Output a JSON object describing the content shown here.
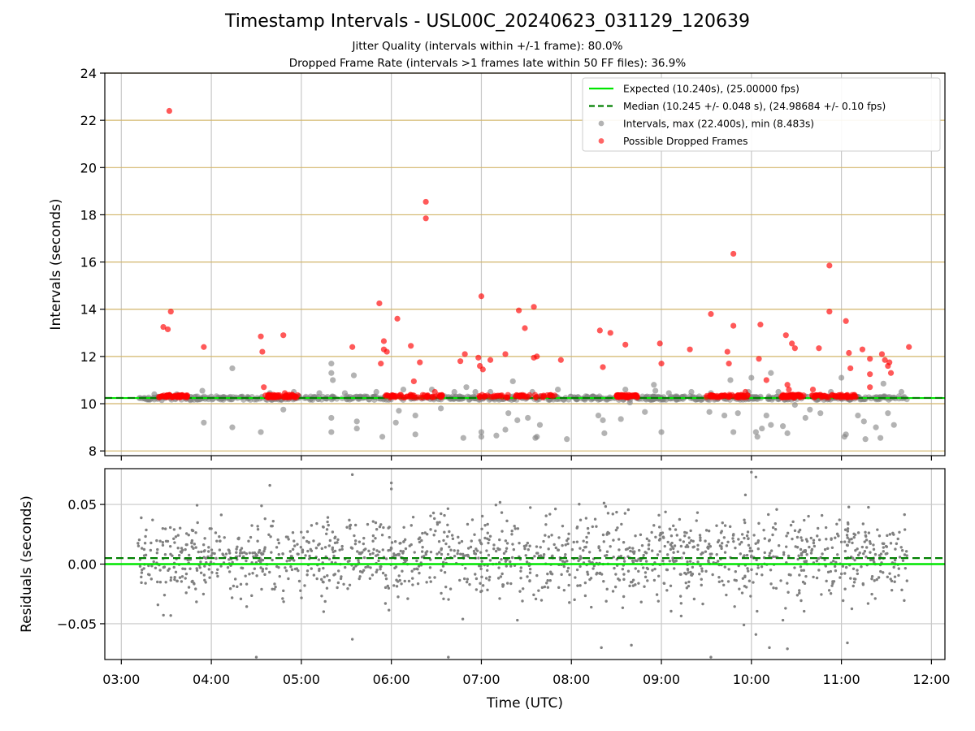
{
  "figure": {
    "title": "Timestamp Intervals - USL00C_20240623_031129_120639",
    "subtitle_1": "Jitter Quality (intervals within +/-1 frame): 80.0%",
    "subtitle_2": "Dropped Frame Rate (intervals >1 frames late within 50 FF files): 36.9%"
  },
  "colors": {
    "expected": "#00e600",
    "median": "#008000",
    "intervals": "#808080",
    "dropped": "#ff0000",
    "hgrid_top": "#d2b56a",
    "grid": "#c8c8c8"
  },
  "chart_data": [
    {
      "type": "scatter",
      "name": "intervals",
      "ylabel": "Intervals (seconds)",
      "xlim": [
        "02:49",
        "12:09"
      ],
      "ylim": [
        7.8,
        24
      ],
      "yticks": [
        "8",
        "10",
        "12",
        "14",
        "16",
        "18",
        "20",
        "22",
        "24"
      ],
      "ytick_values": [
        8,
        10,
        12,
        14,
        16,
        18,
        20,
        22,
        24
      ],
      "xtick_values": [
        "03:00",
        "04:00",
        "05:00",
        "06:00",
        "07:00",
        "08:00",
        "09:00",
        "10:00",
        "11:00",
        "12:00"
      ],
      "grid": "on",
      "legend_position": "top-right",
      "legend": [
        {
          "label": "Expected (10.240s), (25.00000 fps)",
          "kind": "solid-line",
          "color": "#00e600"
        },
        {
          "label": "Median (10.245 +/- 0.048 s), (24.98684 +/- 0.10 fps)",
          "kind": "dashed-line",
          "color": "#008000"
        },
        {
          "label": "Intervals, max (22.400s), min (8.483s)",
          "kind": "marker",
          "color": "#808080"
        },
        {
          "label": "Possible Dropped Frames",
          "kind": "marker",
          "color": "#ff0000"
        }
      ],
      "expected_interval": 10.24,
      "median_interval": 10.245,
      "data_time_range": [
        "03:11",
        "11:44"
      ],
      "dense_band": {
        "center": 10.24,
        "half_width": 0.08
      },
      "intervals_outliers": [
        [
          "03:22",
          10.4
        ],
        [
          "03:27",
          10.15
        ],
        [
          "03:37",
          10.4
        ],
        [
          "03:46",
          10.15
        ],
        [
          "03:54",
          10.55
        ],
        [
          "03:55",
          9.2
        ],
        [
          "04:14",
          11.5
        ],
        [
          "04:14",
          9.0
        ],
        [
          "04:33",
          8.8
        ],
        [
          "04:39",
          10.45
        ],
        [
          "04:48",
          9.75
        ],
        [
          "04:55",
          10.5
        ],
        [
          "05:12",
          10.45
        ],
        [
          "05:20",
          11.7
        ],
        [
          "05:20",
          11.3
        ],
        [
          "05:21",
          11.0
        ],
        [
          "05:20",
          9.4
        ],
        [
          "05:20",
          8.8
        ],
        [
          "05:29",
          10.45
        ],
        [
          "05:35",
          11.2
        ],
        [
          "05:37",
          9.25
        ],
        [
          "05:37",
          8.95
        ],
        [
          "05:50",
          10.5
        ],
        [
          "05:54",
          8.6
        ],
        [
          "06:03",
          9.2
        ],
        [
          "06:05",
          9.7
        ],
        [
          "06:08",
          10.6
        ],
        [
          "06:16",
          9.5
        ],
        [
          "06:16",
          8.7
        ],
        [
          "06:27",
          10.6
        ],
        [
          "06:33",
          9.8
        ],
        [
          "06:42",
          10.5
        ],
        [
          "06:48",
          8.55
        ],
        [
          "06:50",
          10.7
        ],
        [
          "06:56",
          10.5
        ],
        [
          "07:00",
          8.8
        ],
        [
          "07:00",
          8.6
        ],
        [
          "07:06",
          10.5
        ],
        [
          "07:10",
          8.65
        ],
        [
          "07:16",
          8.9
        ],
        [
          "07:18",
          9.6
        ],
        [
          "07:21",
          10.95
        ],
        [
          "07:24",
          9.3
        ],
        [
          "07:31",
          9.4
        ],
        [
          "07:34",
          10.5
        ],
        [
          "07:36",
          8.55
        ],
        [
          "07:37",
          8.6
        ],
        [
          "07:39",
          9.1
        ],
        [
          "07:51",
          10.6
        ],
        [
          "07:57",
          8.5
        ],
        [
          "08:18",
          9.5
        ],
        [
          "08:21",
          9.3
        ],
        [
          "08:22",
          8.75
        ],
        [
          "08:33",
          9.35
        ],
        [
          "08:36",
          10.6
        ],
        [
          "08:39",
          10.05
        ],
        [
          "08:49",
          9.65
        ],
        [
          "08:55",
          10.8
        ],
        [
          "08:56",
          10.55
        ],
        [
          "09:00",
          8.8
        ],
        [
          "09:05",
          10.45
        ],
        [
          "09:20",
          10.5
        ],
        [
          "09:32",
          9.65
        ],
        [
          "09:33",
          10.45
        ],
        [
          "09:42",
          9.5
        ],
        [
          "09:46",
          11.0
        ],
        [
          "09:48",
          8.8
        ],
        [
          "09:51",
          9.6
        ],
        [
          "09:58",
          10.5
        ],
        [
          "10:00",
          11.1
        ],
        [
          "10:03",
          8.8
        ],
        [
          "10:04",
          8.6
        ],
        [
          "10:07",
          8.95
        ],
        [
          "10:10",
          9.5
        ],
        [
          "10:13",
          9.1
        ],
        [
          "10:13",
          11.3
        ],
        [
          "10:18",
          10.5
        ],
        [
          "10:21",
          9.05
        ],
        [
          "10:24",
          8.75
        ],
        [
          "10:29",
          9.95
        ],
        [
          "10:36",
          9.4
        ],
        [
          "10:39",
          9.75
        ],
        [
          "10:46",
          9.6
        ],
        [
          "10:53",
          10.5
        ],
        [
          "11:00",
          11.1
        ],
        [
          "11:03",
          8.7
        ],
        [
          "11:02",
          8.6
        ],
        [
          "11:11",
          9.5
        ],
        [
          "11:15",
          9.25
        ],
        [
          "11:16",
          8.5
        ],
        [
          "11:23",
          9.0
        ],
        [
          "11:26",
          8.55
        ],
        [
          "11:28",
          10.85
        ],
        [
          "11:31",
          9.6
        ],
        [
          "11:35",
          9.1
        ],
        [
          "11:40",
          10.5
        ]
      ],
      "dropped_frames": [
        [
          "03:32",
          22.4
        ],
        [
          "03:28",
          13.25
        ],
        [
          "03:31",
          13.15
        ],
        [
          "03:33",
          13.9
        ],
        [
          "03:55",
          12.4
        ],
        [
          "04:33",
          12.85
        ],
        [
          "04:34",
          12.2
        ],
        [
          "04:35",
          10.7
        ],
        [
          "04:48",
          12.9
        ],
        [
          "04:49",
          10.45
        ],
        [
          "05:34",
          12.4
        ],
        [
          "05:52",
          14.25
        ],
        [
          "05:53",
          11.7
        ],
        [
          "05:55",
          12.65
        ],
        [
          "05:55",
          12.3
        ],
        [
          "05:57",
          12.2
        ],
        [
          "06:04",
          13.6
        ],
        [
          "06:13",
          12.45
        ],
        [
          "06:15",
          10.95
        ],
        [
          "06:19",
          11.75
        ],
        [
          "06:23",
          18.55
        ],
        [
          "06:23",
          17.85
        ],
        [
          "06:29",
          10.5
        ],
        [
          "06:46",
          11.8
        ],
        [
          "06:49",
          12.1
        ],
        [
          "06:58",
          11.95
        ],
        [
          "06:59",
          11.6
        ],
        [
          "07:00",
          14.55
        ],
        [
          "07:01",
          11.45
        ],
        [
          "07:06",
          11.85
        ],
        [
          "07:16",
          12.1
        ],
        [
          "07:25",
          13.95
        ],
        [
          "07:29",
          13.2
        ],
        [
          "07:35",
          11.95
        ],
        [
          "07:35",
          14.1
        ],
        [
          "07:37",
          12.0
        ],
        [
          "07:53",
          11.85
        ],
        [
          "08:19",
          13.1
        ],
        [
          "08:21",
          11.55
        ],
        [
          "08:26",
          13.0
        ],
        [
          "08:36",
          12.5
        ],
        [
          "08:59",
          12.55
        ],
        [
          "09:00",
          11.7
        ],
        [
          "09:19",
          12.3
        ],
        [
          "09:33",
          13.8
        ],
        [
          "09:44",
          12.2
        ],
        [
          "09:45",
          11.7
        ],
        [
          "09:48",
          16.35
        ],
        [
          "09:48",
          13.3
        ],
        [
          "09:56",
          10.5
        ],
        [
          "10:05",
          11.9
        ],
        [
          "10:06",
          13.35
        ],
        [
          "10:10",
          11.0
        ],
        [
          "10:23",
          12.9
        ],
        [
          "10:24",
          10.8
        ],
        [
          "10:25",
          10.6
        ],
        [
          "10:27",
          12.55
        ],
        [
          "10:29",
          12.35
        ],
        [
          "10:41",
          10.6
        ],
        [
          "10:45",
          12.35
        ],
        [
          "10:52",
          15.85
        ],
        [
          "10:52",
          13.9
        ],
        [
          "11:03",
          13.5
        ],
        [
          "11:05",
          12.15
        ],
        [
          "11:06",
          11.5
        ],
        [
          "11:14",
          12.3
        ],
        [
          "11:19",
          11.9
        ],
        [
          "11:19",
          11.25
        ],
        [
          "11:19",
          10.7
        ],
        [
          "11:27",
          12.1
        ],
        [
          "11:29",
          11.85
        ],
        [
          "11:31",
          11.6
        ],
        [
          "11:32",
          11.75
        ],
        [
          "11:33",
          11.3
        ],
        [
          "11:45",
          12.4
        ]
      ],
      "dropped_clusters": [
        [
          "03:25",
          "03:44"
        ],
        [
          "04:35",
          "04:58"
        ],
        [
          "05:55",
          "06:35"
        ],
        [
          "06:58",
          "07:50"
        ],
        [
          "08:30",
          "08:44"
        ],
        [
          "09:30",
          "09:58"
        ],
        [
          "10:20",
          "10:35"
        ],
        [
          "10:40",
          "11:10"
        ]
      ]
    },
    {
      "type": "scatter",
      "name": "residuals",
      "xlabel": "Time (UTC)",
      "ylabel": "Residuals (seconds)",
      "xlim": [
        "02:49",
        "12:09"
      ],
      "ylim": [
        -0.08,
        0.08
      ],
      "yticks": [
        "0.05",
        "0.00",
        "−0.05"
      ],
      "ytick_values": [
        0.05,
        0,
        -0.05
      ],
      "xticks": [
        "03:00",
        "04:00",
        "05:00",
        "06:00",
        "07:00",
        "08:00",
        "09:00",
        "10:00",
        "11:00",
        "12:00"
      ],
      "xtick_values": [
        "03:00",
        "04:00",
        "05:00",
        "06:00",
        "07:00",
        "08:00",
        "09:00",
        "10:00",
        "11:00",
        "12:00"
      ],
      "grid": "on",
      "expected_residual": 0.0,
      "median_residual": 0.005,
      "data_time_range": [
        "03:11",
        "11:44"
      ],
      "distribution": {
        "center": 0.005,
        "spread": 0.017,
        "points": 1500
      },
      "residual_outliers": [
        [
          "04:30",
          -0.078
        ],
        [
          "04:39",
          0.066
        ],
        [
          "05:34",
          0.075
        ],
        [
          "05:34",
          -0.063
        ],
        [
          "06:00",
          0.068
        ],
        [
          "06:00",
          0.063
        ],
        [
          "06:38",
          -0.078
        ],
        [
          "07:24",
          -0.047
        ],
        [
          "08:20",
          -0.07
        ],
        [
          "08:40",
          -0.068
        ],
        [
          "09:33",
          -0.078
        ],
        [
          "09:55",
          -0.051
        ],
        [
          "09:56",
          0.058
        ],
        [
          "10:00",
          0.077
        ],
        [
          "10:03",
          0.073
        ],
        [
          "10:03",
          -0.059
        ],
        [
          "10:12",
          -0.07
        ],
        [
          "10:21",
          -0.047
        ],
        [
          "10:24",
          -0.071
        ],
        [
          "11:04",
          -0.066
        ]
      ]
    }
  ]
}
